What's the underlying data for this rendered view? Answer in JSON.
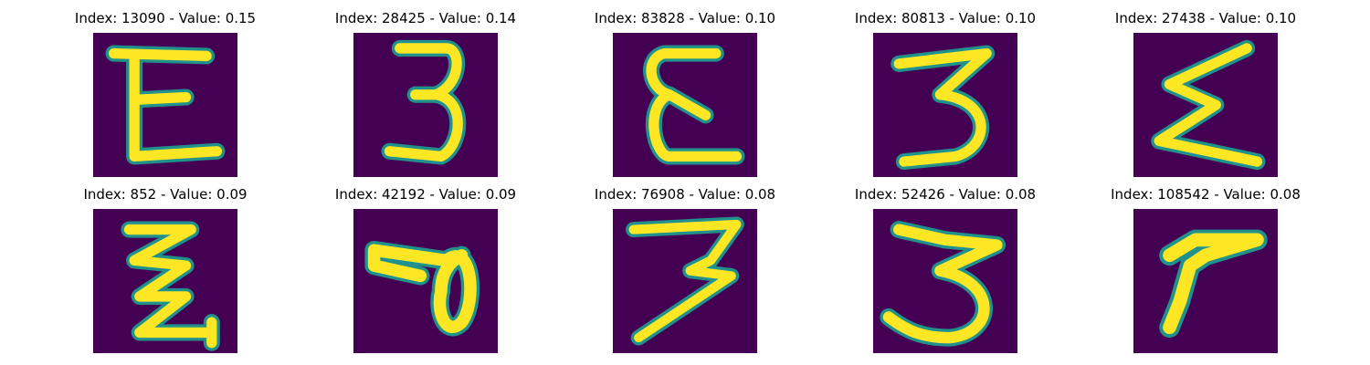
{
  "panels": [
    {
      "index_label": "Index: 13090 - Value: 0.15"
    },
    {
      "index_label": "Index: 28425 - Value: 0.14"
    },
    {
      "index_label": "Index: 83828 - Value: 0.10"
    },
    {
      "index_label": "Index: 80813 - Value: 0.10"
    },
    {
      "index_label": "Index: 27438 - Value: 0.10"
    },
    {
      "index_label": "Index: 852 - Value: 0.09"
    },
    {
      "index_label": "Index: 42192 - Value: 0.09"
    },
    {
      "index_label": "Index: 76908 - Value: 0.08"
    },
    {
      "index_label": "Index: 52426 - Value: 0.08"
    },
    {
      "index_label": "Index: 108542 - Value: 0.08"
    }
  ],
  "colors": {
    "background": "#440154",
    "stroke_core": "#fde725",
    "stroke_edge": "#21918c"
  }
}
